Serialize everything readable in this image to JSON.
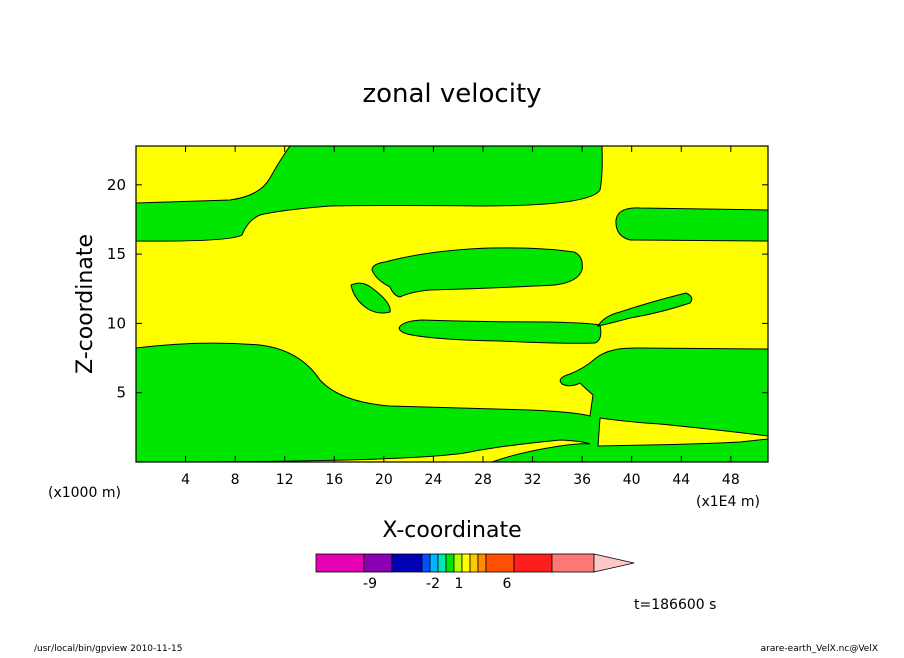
{
  "chart_data": {
    "type": "contour",
    "title": "zonal velocity",
    "xlabel": "X-coordinate",
    "ylabel": "Z-coordinate",
    "x_unit_label": "(x1000 m)",
    "x_unit_label_right": "(x1E4 m)",
    "xlim": [
      0,
      51
    ],
    "ylim": [
      0,
      22.8
    ],
    "x_ticks": [
      4,
      8,
      12,
      16,
      20,
      24,
      28,
      32,
      36,
      40,
      44,
      48
    ],
    "y_ticks": [
      5,
      10,
      15,
      20
    ],
    "colors": {
      "background_band": "#ffff00",
      "positive_band": "#00e600",
      "contour_line": "#000000"
    },
    "colorbar": {
      "colors": [
        "#e600b4",
        "#8c00b4",
        "#0000b4",
        "#0050ff",
        "#00b4ff",
        "#00e6b4",
        "#00e600",
        "#b4ff00",
        "#ffff00",
        "#ffc800",
        "#ff8c00",
        "#ff5000",
        "#ff1e1e",
        "#ff7878",
        "#ffc8c8"
      ],
      "labels": [
        "-9",
        "-2",
        "1",
        "6"
      ]
    },
    "time_label": "t=186600 s"
  },
  "footer": {
    "left": "/usr/local/bin/gpview   2010-11-15",
    "right": "arare-earth_VelX.nc@VelX"
  }
}
